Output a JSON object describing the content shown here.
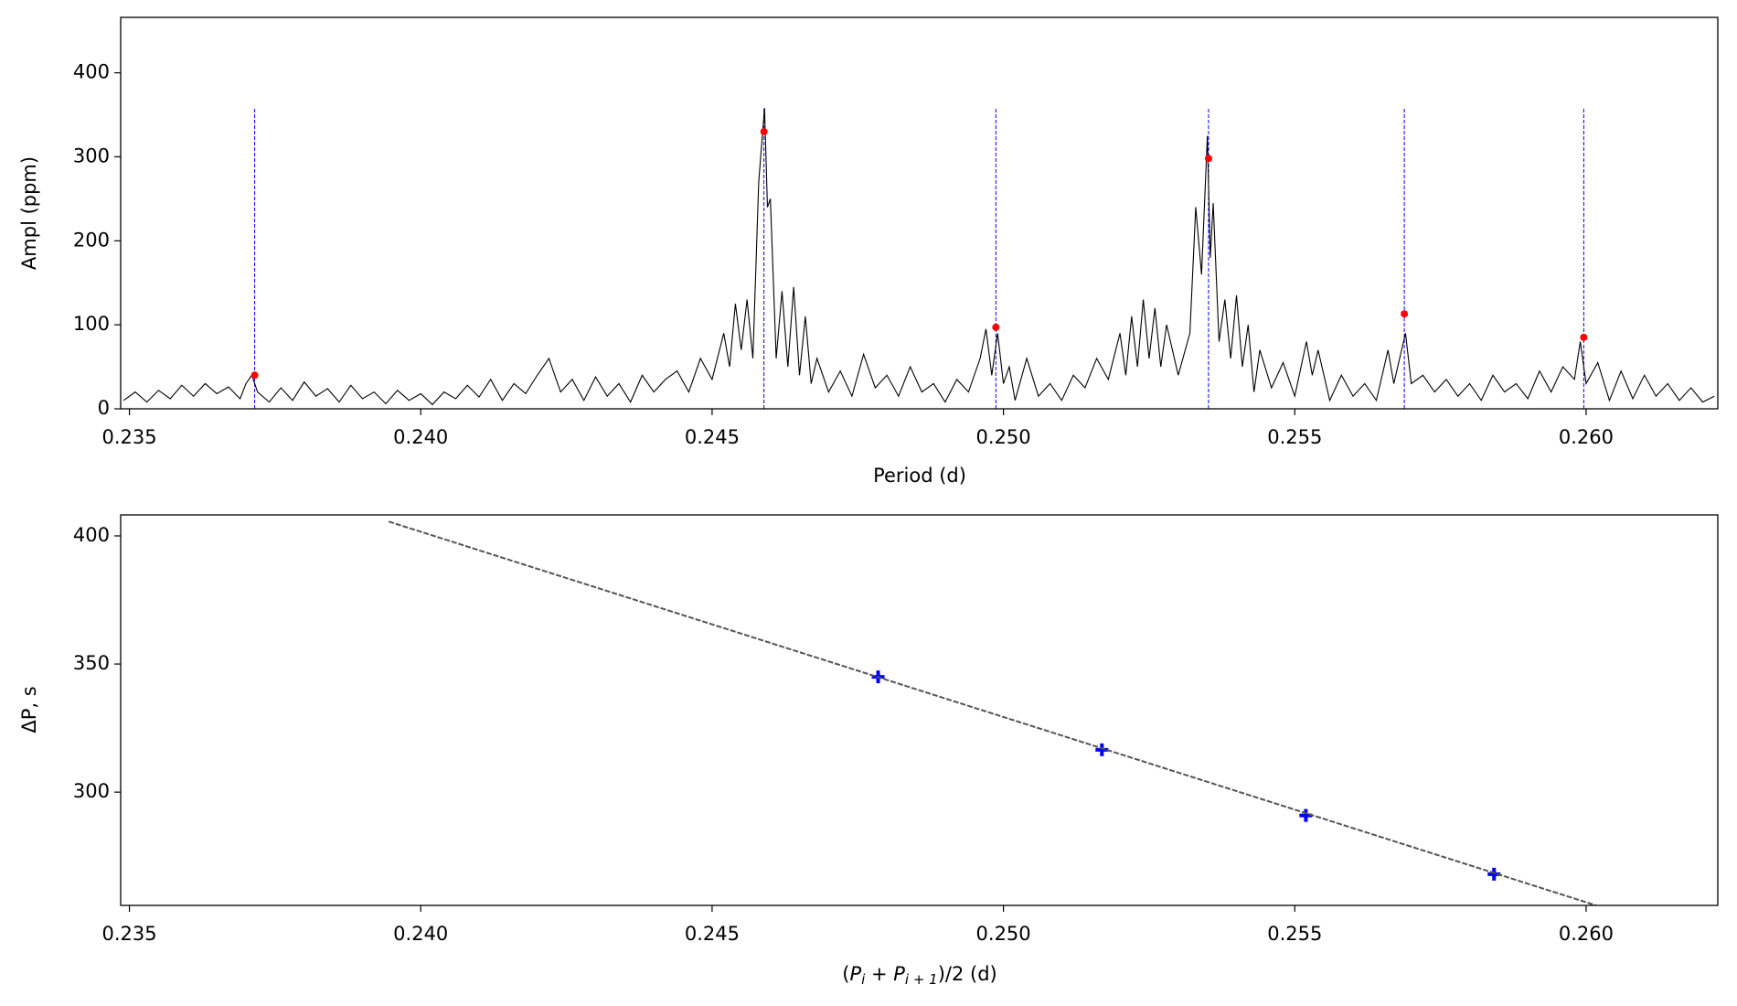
{
  "chart_data": [
    {
      "type": "line",
      "xlabel": "Period (d)",
      "ylabel": "Ampl (ppm)",
      "xlim": [
        0.23485,
        0.26226
      ],
      "ylim": [
        0,
        466
      ],
      "xticks": [
        0.235,
        {
          "value": 0.24,
          "label": "0.240"
        },
        0.245,
        {
          "value": 0.25,
          "label": "0.250"
        },
        0.255,
        {
          "value": 0.26,
          "label": "0.260"
        }
      ],
      "yticks": [
        0,
        100,
        200,
        300,
        400
      ],
      "color": "#000000",
      "x": [
        0.2349,
        0.2351,
        0.2353,
        0.2355,
        0.2357,
        0.2359,
        0.2361,
        0.2363,
        0.2365,
        0.2367,
        0.2369,
        0.237,
        0.2371,
        0.2372,
        0.2374,
        0.2376,
        0.2378,
        0.238,
        0.2382,
        0.2384,
        0.2386,
        0.2388,
        0.239,
        0.2392,
        0.2394,
        0.2396,
        0.2398,
        0.24,
        0.2402,
        0.2404,
        0.2406,
        0.2408,
        0.241,
        0.2412,
        0.2414,
        0.2416,
        0.2418,
        0.242,
        0.2422,
        0.2424,
        0.2426,
        0.2428,
        0.243,
        0.2432,
        0.2434,
        0.2436,
        0.2438,
        0.244,
        0.2442,
        0.2444,
        0.2446,
        0.2448,
        0.245,
        0.2452,
        0.2453,
        0.2454,
        0.2455,
        0.2456,
        0.2457,
        0.2458,
        0.2459,
        0.24595,
        0.246,
        0.2461,
        0.2462,
        0.2463,
        0.2464,
        0.2465,
        0.2466,
        0.2467,
        0.2468,
        0.247,
        0.2472,
        0.2474,
        0.2476,
        0.2478,
        0.248,
        0.2482,
        0.2484,
        0.2486,
        0.2488,
        0.249,
        0.2492,
        0.2494,
        0.2496,
        0.2497,
        0.2498,
        0.2499,
        0.25,
        0.2501,
        0.2502,
        0.2504,
        0.2506,
        0.2508,
        0.251,
        0.2512,
        0.2514,
        0.2516,
        0.2518,
        0.252,
        0.2521,
        0.2522,
        0.2523,
        0.2524,
        0.2525,
        0.2526,
        0.2527,
        0.2528,
        0.253,
        0.2532,
        0.2533,
        0.2534,
        0.2535,
        0.25355,
        0.2536,
        0.2537,
        0.2538,
        0.2539,
        0.254,
        0.2541,
        0.2542,
        0.2543,
        0.2544,
        0.2546,
        0.2548,
        0.255,
        0.2552,
        0.2553,
        0.2554,
        0.2556,
        0.2558,
        0.256,
        0.2562,
        0.2564,
        0.2566,
        0.2567,
        0.2568,
        0.2569,
        0.257,
        0.2572,
        0.2574,
        0.2576,
        0.2578,
        0.258,
        0.2582,
        0.2584,
        0.2586,
        0.2588,
        0.259,
        0.2592,
        0.2594,
        0.2596,
        0.2598,
        0.2599,
        0.26,
        0.2602,
        0.2604,
        0.2606,
        0.2608,
        0.261,
        0.2612,
        0.2614,
        0.2616,
        0.2618,
        0.262,
        0.2622
      ],
      "values": [
        10,
        20,
        8,
        22,
        12,
        28,
        15,
        30,
        18,
        26,
        12,
        30,
        40,
        20,
        8,
        25,
        10,
        32,
        15,
        24,
        8,
        28,
        12,
        20,
        6,
        22,
        10,
        18,
        5,
        20,
        12,
        28,
        14,
        35,
        10,
        30,
        18,
        40,
        60,
        20,
        35,
        10,
        38,
        15,
        30,
        8,
        40,
        20,
        35,
        45,
        20,
        60,
        35,
        90,
        50,
        125,
        70,
        130,
        60,
        270,
        358,
        240,
        250,
        60,
        140,
        50,
        145,
        40,
        110,
        30,
        60,
        20,
        45,
        15,
        65,
        25,
        40,
        15,
        50,
        20,
        30,
        8,
        35,
        20,
        60,
        95,
        40,
        90,
        30,
        50,
        10,
        60,
        15,
        30,
        10,
        40,
        25,
        60,
        35,
        90,
        40,
        110,
        50,
        130,
        60,
        120,
        50,
        100,
        40,
        90,
        240,
        160,
        325,
        180,
        245,
        80,
        130,
        60,
        135,
        50,
        100,
        20,
        70,
        25,
        55,
        15,
        80,
        40,
        70,
        10,
        40,
        15,
        30,
        10,
        70,
        30,
        60,
        90,
        30,
        40,
        20,
        35,
        15,
        30,
        10,
        40,
        20,
        30,
        12,
        45,
        20,
        50,
        35,
        80,
        30,
        55,
        10,
        45,
        12,
        40,
        15,
        30,
        10,
        25,
        8,
        15
      ],
      "markers": {
        "color": "#ff0000",
        "x": [
          0.23715,
          0.24589,
          0.24987,
          0.25352,
          0.25688,
          0.25996
        ],
        "values": [
          40,
          330,
          97,
          298,
          113,
          85
        ]
      },
      "vline_color": "#0000ff"
    },
    {
      "type": "scatter",
      "xlabel": [
        "(",
        "P",
        "i",
        " + ",
        "P",
        "i + 1",
        ")/2 (d)"
      ],
      "ylabel": "ΔP, s",
      "xlim": [
        0.23485,
        0.26226
      ],
      "ylim": [
        255.8,
        408.2
      ],
      "xticks": [
        0.235,
        {
          "value": 0.24,
          "label": "0.240"
        },
        0.245,
        {
          "value": 0.25,
          "label": "0.250"
        },
        0.255,
        {
          "value": 0.26,
          "label": "0.260"
        }
      ],
      "yticks": [
        300,
        350,
        400
      ],
      "series": [
        {
          "color": "#0000ff",
          "x": [
            0.24785,
            0.25169,
            0.25519,
            0.25842
          ],
          "values": [
            345.0,
            316.5,
            290.9,
            268.0
          ]
        },
        {
          "color": "#555555",
          "x": [
            0.23945,
            0.26017
          ],
          "values": [
            405.6,
            255.8
          ],
          "dashed": true
        }
      ]
    }
  ]
}
